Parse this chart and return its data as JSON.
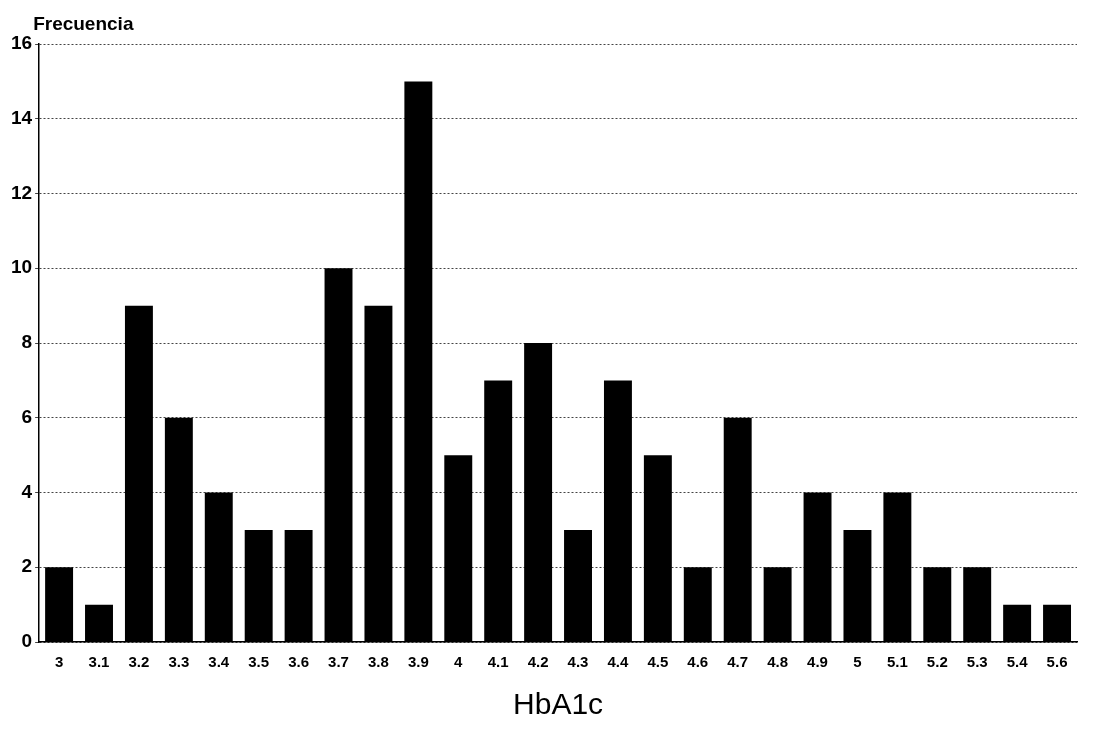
{
  "chart_data": {
    "type": "bar",
    "xlabel": "HbA1c",
    "ylabel": "Frecuencia",
    "categories": [
      "3",
      "3.1",
      "3.2",
      "3.3",
      "3.4",
      "3.5",
      "3.6",
      "3.7",
      "3.8",
      "3.9",
      "4",
      "4.1",
      "4.2",
      "4.3",
      "4.4",
      "4.5",
      "4.6",
      "4.7",
      "4.8",
      "4.9",
      "5",
      "5.1",
      "5.2",
      "5.3",
      "5.4",
      "5.6"
    ],
    "values": [
      2,
      1,
      9,
      6,
      4,
      3,
      3,
      10,
      9,
      15,
      5,
      7,
      8,
      3,
      7,
      5,
      2,
      6,
      2,
      4,
      3,
      4,
      2,
      2,
      1,
      1
    ],
    "color": "#000000",
    "ylim": [
      0,
      16
    ],
    "yticks": [
      0,
      2,
      4,
      6,
      8,
      10,
      12,
      14,
      16
    ],
    "grid": "y",
    "legend": false
  }
}
